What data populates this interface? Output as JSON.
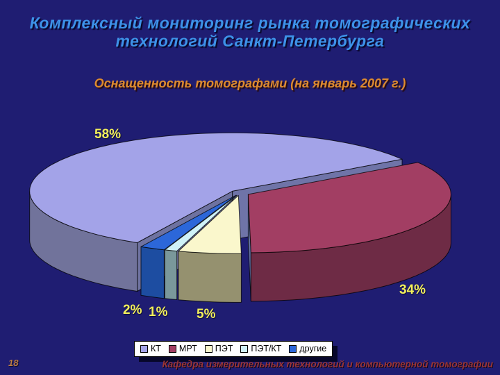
{
  "slide": {
    "title_line1": "Комплексный мониторинг рынка томографических",
    "title_line2": "технологий Санкт-Петербурга",
    "subtitle": "Оснащенность томографами (на январь 2007 г.)",
    "page_number": "18",
    "footer": "Кафедра измерительных технологий и компьютерной томографии",
    "colors": {
      "background": "#1F1D72",
      "title_text": "#3D92E8",
      "subtitle_text": "#DE8B2E",
      "value_label_text": "#F2EF5C",
      "footer_text": "#9C3434",
      "page_number_text": "#BD7C42",
      "legend_background": "#FFFFFF"
    }
  },
  "chart_data": {
    "type": "pie",
    "style": "3d-exploded",
    "title": "Оснащенность томографами (на январь 2007 г.)",
    "unit": "%",
    "legend_position": "bottom",
    "slices": [
      {
        "label": "КТ",
        "value": 58,
        "pct_label": "58%",
        "color": "#A3A3E8",
        "side_color": "#71739B"
      },
      {
        "label": "МРТ",
        "value": 34,
        "pct_label": "34%",
        "color": "#A23E63",
        "side_color": "#6E2B45"
      },
      {
        "label": "ПЭТ",
        "value": 5,
        "pct_label": "5%",
        "color": "#FAF7CC",
        "side_color": "#95916F"
      },
      {
        "label": "ПЭТ/КТ",
        "value": 1,
        "pct_label": "1%",
        "color": "#CFF2F8",
        "side_color": "#7A989B"
      },
      {
        "label": "другие",
        "value": 2,
        "pct_label": "2%",
        "color": "#2C67D9",
        "side_color": "#1D4DA1"
      }
    ]
  }
}
